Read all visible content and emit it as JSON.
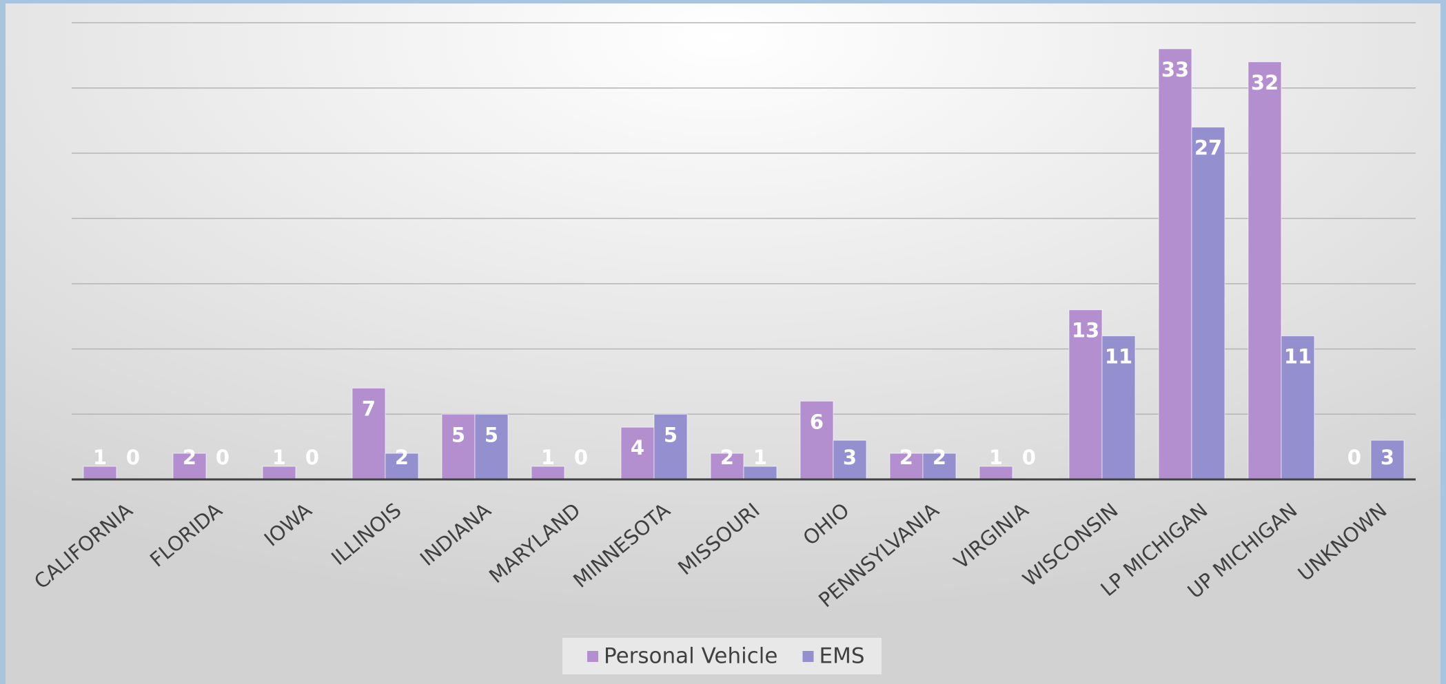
{
  "chart_data": {
    "type": "bar",
    "categories": [
      "CALIFORNIA",
      "FLORIDA",
      "IOWA",
      "ILLINOIS",
      "INDIANA",
      "MARYLAND",
      "MINNESOTA",
      "MISSOURI",
      "OHIO",
      "PENNSYLVANIA",
      "VIRGINIA",
      "WISCONSIN",
      "LP MICHIGAN",
      "UP MICHIGAN",
      "UNKNOWN"
    ],
    "series": [
      {
        "name": "Personal Vehicle",
        "color": "#b48fcf",
        "values": [
          1,
          2,
          1,
          7,
          5,
          1,
          4,
          2,
          6,
          2,
          1,
          13,
          33,
          32,
          0
        ]
      },
      {
        "name": "EMS",
        "color": "#9490d0",
        "values": [
          0,
          0,
          0,
          2,
          5,
          0,
          5,
          1,
          3,
          2,
          0,
          11,
          27,
          11,
          3
        ]
      }
    ],
    "ylim": [
      0,
      35
    ],
    "yticks": [
      0,
      5,
      10,
      15,
      20,
      25,
      30,
      35
    ],
    "grid": true,
    "legend": "bottom"
  }
}
